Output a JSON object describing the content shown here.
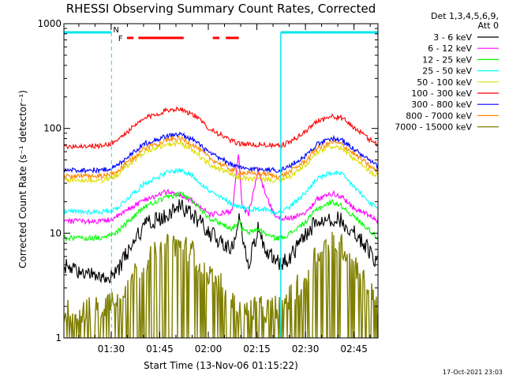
{
  "title": "RHESSI Observing Summary Count Rates, Corrected",
  "date_stamp": "17-Oct-2021 23:03",
  "legend_header": [
    "Det 1,3,4,5,6,9,",
    "Att 0"
  ],
  "markers": {
    "N": "N",
    "F": "F"
  },
  "colors": {
    "N_marker": "#00e5ee",
    "F_marker": "#ff0000",
    "night_band": "#00e5ee"
  },
  "chart_data": {
    "type": "line",
    "title": "RHESSI Observing Summary Count Rates, Corrected",
    "xlabel": "Start Time (13-Nov-06 01:15:22)",
    "ylabel": "Corrected Count Rate (s⁻¹ detector⁻¹)",
    "x_unit": "minutes after 01:15:22",
    "xlim": [
      0,
      97
    ],
    "ylim": [
      1,
      1000
    ],
    "yscale": "log",
    "x_ticks": [
      {
        "label": "01:30",
        "value": 14.6
      },
      {
        "label": "01:45",
        "value": 29.6
      },
      {
        "label": "02:00",
        "value": 44.6
      },
      {
        "label": "02:15",
        "value": 59.6
      },
      {
        "label": "02:30",
        "value": 74.6
      },
      {
        "label": "02:45",
        "value": 89.6
      }
    ],
    "y_ticks": [
      {
        "label": "1",
        "value": 1
      },
      {
        "label": "10",
        "value": 10
      },
      {
        "label": "100",
        "value": 100
      },
      {
        "label": "1000",
        "value": 1000
      }
    ],
    "night_intervals": [
      [
        0,
        14.7
      ],
      [
        67,
        97
      ]
    ],
    "flare_flag_intervals": [
      [
        19.5,
        21.5
      ],
      [
        23,
        37
      ],
      [
        46,
        48
      ],
      [
        50,
        54
      ]
    ],
    "series": [
      {
        "name": "3 - 6 keV",
        "color": "#000000",
        "x": [
          0,
          5,
          12,
          16,
          20,
          25,
          32,
          36,
          40,
          45,
          52,
          54,
          55,
          57,
          60,
          62,
          65,
          67,
          70,
          75,
          78,
          83,
          86,
          90,
          94,
          97
        ],
        "y": [
          5,
          4,
          4,
          4,
          7,
          12,
          15,
          18,
          15,
          10,
          7,
          14,
          10,
          5,
          11,
          7,
          6,
          5,
          6,
          10,
          13,
          14,
          13,
          10,
          7,
          5
        ]
      },
      {
        "name": "6 - 12 keV",
        "color": "#ff00ff",
        "x": [
          0,
          5,
          12,
          16,
          20,
          25,
          32,
          36,
          40,
          45,
          52,
          54,
          55,
          57,
          60,
          62,
          65,
          67,
          70,
          75,
          78,
          83,
          86,
          90,
          94,
          97
        ],
        "y": [
          13,
          13,
          13,
          14,
          17,
          21,
          25,
          23,
          20,
          15,
          16,
          60,
          18,
          15,
          40,
          25,
          15,
          14,
          14,
          16,
          21,
          24,
          22,
          17,
          15,
          13
        ]
      },
      {
        "name": "12 - 25 keV",
        "color": "#00ff00",
        "x": [
          0,
          5,
          12,
          16,
          20,
          25,
          32,
          36,
          40,
          45,
          52,
          54,
          55,
          57,
          60,
          62,
          65,
          67,
          70,
          75,
          78,
          83,
          86,
          90,
          94,
          97
        ],
        "y": [
          9,
          9,
          9,
          10,
          13,
          18,
          22,
          24,
          20,
          14,
          11,
          13,
          11,
          10,
          11,
          10,
          9,
          9,
          10,
          13,
          17,
          20,
          18,
          14,
          11,
          9
        ]
      },
      {
        "name": "25 - 50 keV",
        "color": "#00ffff",
        "x": [
          0,
          5,
          12,
          16,
          20,
          25,
          32,
          36,
          40,
          45,
          52,
          54,
          55,
          57,
          60,
          62,
          65,
          67,
          70,
          75,
          78,
          83,
          86,
          90,
          94,
          97
        ],
        "y": [
          16,
          16,
          16,
          17,
          22,
          30,
          38,
          40,
          35,
          25,
          19,
          18,
          18,
          17,
          17,
          17,
          16,
          16,
          18,
          25,
          33,
          38,
          36,
          27,
          20,
          17
        ]
      },
      {
        "name": "50 - 100 keV",
        "color": "#dddd00",
        "x": [
          0,
          5,
          12,
          16,
          20,
          25,
          32,
          36,
          40,
          45,
          52,
          54,
          55,
          57,
          60,
          62,
          65,
          67,
          70,
          75,
          78,
          83,
          86,
          90,
          94,
          97
        ],
        "y": [
          32,
          32,
          32,
          35,
          45,
          60,
          70,
          72,
          62,
          45,
          36,
          34,
          34,
          33,
          33,
          33,
          32,
          32,
          35,
          45,
          58,
          68,
          64,
          50,
          40,
          35
        ]
      },
      {
        "name": "100 - 300 keV",
        "color": "#ff0000",
        "x": [
          0,
          5,
          12,
          16,
          20,
          25,
          32,
          36,
          40,
          45,
          52,
          54,
          55,
          57,
          60,
          62,
          65,
          67,
          70,
          75,
          78,
          83,
          86,
          90,
          94,
          97
        ],
        "y": [
          68,
          68,
          68,
          75,
          95,
          125,
          150,
          155,
          135,
          100,
          75,
          72,
          72,
          70,
          70,
          70,
          68,
          68,
          75,
          95,
          118,
          130,
          125,
          100,
          80,
          70
        ]
      },
      {
        "name": "300 - 800 keV",
        "color": "#0000ff",
        "x": [
          0,
          5,
          12,
          16,
          20,
          25,
          32,
          36,
          40,
          45,
          52,
          54,
          55,
          57,
          60,
          62,
          65,
          67,
          70,
          75,
          78,
          83,
          86,
          90,
          94,
          97
        ],
        "y": [
          40,
          40,
          40,
          43,
          55,
          72,
          85,
          88,
          78,
          58,
          45,
          42,
          42,
          41,
          41,
          41,
          40,
          40,
          44,
          56,
          70,
          80,
          77,
          62,
          50,
          43
        ]
      },
      {
        "name": "800 - 7000 keV",
        "color": "#ff8800",
        "x": [
          0,
          5,
          12,
          16,
          20,
          25,
          32,
          36,
          40,
          45,
          52,
          54,
          55,
          57,
          60,
          62,
          65,
          67,
          70,
          75,
          78,
          83,
          86,
          90,
          94,
          97
        ],
        "y": [
          35,
          35,
          35,
          38,
          48,
          65,
          78,
          80,
          70,
          52,
          40,
          38,
          38,
          37,
          37,
          37,
          35,
          35,
          39,
          50,
          64,
          74,
          70,
          56,
          45,
          38
        ]
      },
      {
        "name": "7000 - 15000 keV",
        "color": "#808000",
        "x": [
          0,
          5,
          12,
          16,
          20,
          25,
          32,
          36,
          40,
          45,
          52,
          54,
          55,
          57,
          60,
          62,
          65,
          67,
          70,
          75,
          78,
          83,
          86,
          90,
          94,
          97
        ],
        "y": [
          1.8,
          1.8,
          2,
          2.5,
          3.5,
          5.5,
          7.5,
          8,
          6.5,
          4,
          2.5,
          1.8,
          1.8,
          1.8,
          2,
          1.8,
          2,
          2,
          2.5,
          4,
          6.5,
          8.5,
          7.5,
          5,
          3,
          2
        ]
      }
    ]
  }
}
